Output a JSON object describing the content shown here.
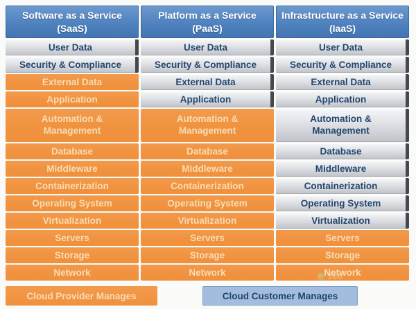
{
  "columns": [
    {
      "id": "saas",
      "title": "Software as a Service",
      "abbr": "(SaaS)",
      "rows": [
        {
          "label": "User Data",
          "owner": "customer"
        },
        {
          "label": "Security & Compliance",
          "owner": "customer"
        },
        {
          "label": "External Data",
          "owner": "provider"
        },
        {
          "label": "Application",
          "owner": "provider"
        },
        {
          "label": "Automation & Management",
          "owner": "provider",
          "tall": true
        },
        {
          "label": "Database",
          "owner": "provider"
        },
        {
          "label": "Middleware",
          "owner": "provider"
        },
        {
          "label": "Containerization",
          "owner": "provider"
        },
        {
          "label": "Operating System",
          "owner": "provider"
        },
        {
          "label": "Virtualization",
          "owner": "provider"
        },
        {
          "label": "Servers",
          "owner": "provider"
        },
        {
          "label": "Storage",
          "owner": "provider"
        },
        {
          "label": "Network",
          "owner": "provider"
        }
      ]
    },
    {
      "id": "paas",
      "title": "Platform as a Service",
      "abbr": "(PaaS)",
      "rows": [
        {
          "label": "User Data",
          "owner": "customer"
        },
        {
          "label": "Security & Compliance",
          "owner": "customer"
        },
        {
          "label": "External Data",
          "owner": "customer"
        },
        {
          "label": "Application",
          "owner": "customer"
        },
        {
          "label": "Automation & Management",
          "owner": "provider",
          "tall": true
        },
        {
          "label": "Database",
          "owner": "provider"
        },
        {
          "label": "Middleware",
          "owner": "provider"
        },
        {
          "label": "Containerization",
          "owner": "provider"
        },
        {
          "label": "Operating System",
          "owner": "provider"
        },
        {
          "label": "Virtualization",
          "owner": "provider"
        },
        {
          "label": "Servers",
          "owner": "provider"
        },
        {
          "label": "Storage",
          "owner": "provider"
        },
        {
          "label": "Network",
          "owner": "provider"
        }
      ]
    },
    {
      "id": "iaas",
      "title": "Infrastructure as a Service",
      "abbr": "(IaaS)",
      "rows": [
        {
          "label": "User Data",
          "owner": "customer"
        },
        {
          "label": "Security & Compliance",
          "owner": "customer"
        },
        {
          "label": "External Data",
          "owner": "customer"
        },
        {
          "label": "Application",
          "owner": "customer"
        },
        {
          "label": "Automation & Management",
          "owner": "customer",
          "tall": true
        },
        {
          "label": "Database",
          "owner": "customer"
        },
        {
          "label": "Middleware",
          "owner": "customer"
        },
        {
          "label": "Containerization",
          "owner": "customer"
        },
        {
          "label": "Operating System",
          "owner": "customer"
        },
        {
          "label": "Virtualization",
          "owner": "customer"
        },
        {
          "label": "Servers",
          "owner": "provider"
        },
        {
          "label": "Storage",
          "owner": "provider"
        },
        {
          "label": "Network",
          "owner": "provider"
        }
      ]
    }
  ],
  "legend": {
    "provider_label": "Cloud Provider Manages",
    "customer_label": "Cloud Customer Manages"
  },
  "colors": {
    "header_blue": "#4D80BD",
    "provider_orange": "#F0913D",
    "provider_text": "#F9DCB4",
    "customer_text_navy": "#24476F",
    "customer_gray_top": "#F6F7F9",
    "customer_gray_bottom": "#BFC2C8",
    "legend_customer_blue": "#A2BDDD"
  },
  "watermark": {
    "text": "360"
  }
}
